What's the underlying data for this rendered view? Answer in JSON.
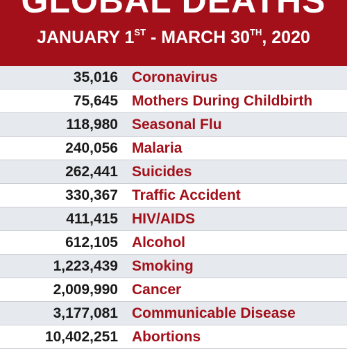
{
  "header": {
    "title": "GLOBAL DEATHS",
    "subtitle": {
      "part1": "JANUARY 1",
      "sup1": "ST",
      "part2": " - MARCH 30",
      "sup2": "TH",
      "part3": ", 2020"
    }
  },
  "rows": [
    {
      "count": "35,016",
      "cause": "Coronavirus"
    },
    {
      "count": "75,645",
      "cause": "Mothers During Childbirth"
    },
    {
      "count": "118,980",
      "cause": "Seasonal Flu"
    },
    {
      "count": "240,056",
      "cause": "Malaria"
    },
    {
      "count": "262,441",
      "cause": "Suicides"
    },
    {
      "count": "330,367",
      "cause": "Traffic Accident"
    },
    {
      "count": "411,415",
      "cause": "HIV/AIDS"
    },
    {
      "count": "612,105",
      "cause": "Alcohol"
    },
    {
      "count": "1,223,439",
      "cause": "Smoking"
    },
    {
      "count": "2,009,990",
      "cause": "Cancer"
    },
    {
      "count": "3,177,081",
      "cause": "Communicable Disease"
    },
    {
      "count": "10,402,251",
      "cause": "Abortions"
    }
  ],
  "colors": {
    "header_bg": "#a3101a",
    "cause_text": "#a3101a",
    "stripe": "#e6e9ed"
  }
}
